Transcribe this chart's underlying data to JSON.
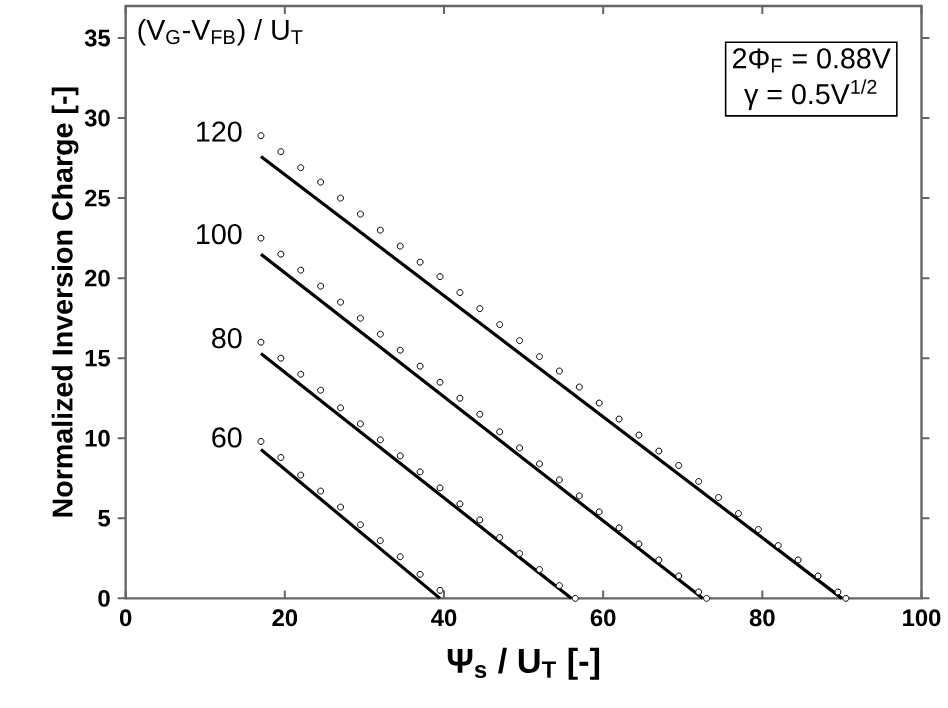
{
  "chart_data": {
    "type": "scatter",
    "xlabel": "Ψ$_{s}$ / U$_{T}$ [-]",
    "ylabel": "Normalized Inversion Charge [-]",
    "legend_title": "(V$_{G}$-V$_{FB}$) / U$_{T}$",
    "annotations": [
      "2Φ$_{F}$ = 0.88V",
      "γ = 0.5V$^{1/2}$"
    ],
    "xlim": [
      0,
      100
    ],
    "ylim": [
      0,
      37
    ],
    "xticks": [
      0,
      20,
      40,
      60,
      80,
      100
    ],
    "yticks": [
      0,
      5,
      10,
      15,
      20,
      25,
      30,
      35
    ],
    "grid": false,
    "series": [
      {
        "name": "120",
        "marker": "circle",
        "color": "#000000",
        "x": [
          17,
          19.5,
          22,
          24.5,
          27,
          29.5,
          32,
          34.5,
          37,
          39.5,
          42,
          44.5,
          47,
          49.5,
          52,
          54.5,
          57,
          59.5,
          62,
          64.5,
          67,
          69.5,
          72,
          74.5,
          77,
          79.5,
          82,
          84.5,
          87,
          89.5,
          90.5
        ],
        "values": [
          28.9,
          27.9,
          26.9,
          26.0,
          25.0,
          24.0,
          23.0,
          22.0,
          21.0,
          20.1,
          19.1,
          18.1,
          17.1,
          16.1,
          15.1,
          14.2,
          13.2,
          12.2,
          11.2,
          10.2,
          9.2,
          8.3,
          7.3,
          6.3,
          5.3,
          4.3,
          3.3,
          2.4,
          1.4,
          0.4,
          0
        ]
      },
      {
        "type": "line",
        "marker": "none",
        "color": "#000000",
        "x": [
          17,
          90
        ],
        "values": [
          27.6,
          0
        ]
      },
      {
        "name": "100",
        "marker": "circle",
        "color": "#000000",
        "x": [
          17,
          19.5,
          22,
          24.5,
          27,
          29.5,
          32,
          34.5,
          37,
          39.5,
          42,
          44.5,
          47,
          49.5,
          52,
          54.5,
          57,
          59.5,
          62,
          64.5,
          67,
          69.5,
          72,
          73
        ],
        "values": [
          22.5,
          21.5,
          20.5,
          19.5,
          18.5,
          17.5,
          16.5,
          15.5,
          14.5,
          13.5,
          12.5,
          11.5,
          10.4,
          9.4,
          8.4,
          7.4,
          6.4,
          5.4,
          4.4,
          3.4,
          2.4,
          1.4,
          0.4,
          0
        ]
      },
      {
        "type": "line",
        "marker": "none",
        "color": "#000000",
        "x": [
          17,
          72.5
        ],
        "values": [
          21.5,
          0
        ]
      },
      {
        "name": "80",
        "marker": "circle",
        "color": "#000000",
        "x": [
          17,
          19.5,
          22,
          24.5,
          27,
          29.5,
          32,
          34.5,
          37,
          39.5,
          42,
          44.5,
          47,
          49.5,
          52,
          54.5,
          56.5
        ],
        "values": [
          16.0,
          15.0,
          14.0,
          13.0,
          11.9,
          10.9,
          9.9,
          8.9,
          7.9,
          6.9,
          5.9,
          4.9,
          3.8,
          2.8,
          1.8,
          0.8,
          0
        ]
      },
      {
        "type": "line",
        "marker": "none",
        "color": "#000000",
        "x": [
          17,
          56
        ],
        "values": [
          15.3,
          0
        ]
      },
      {
        "name": "60",
        "marker": "circle",
        "color": "#000000",
        "x": [
          17,
          19.5,
          22,
          24.5,
          27,
          29.5,
          32,
          34.5,
          37,
          39.5
        ],
        "values": [
          9.8,
          8.8,
          7.7,
          6.7,
          5.7,
          4.6,
          3.6,
          2.6,
          1.5,
          0.5
        ]
      },
      {
        "type": "line",
        "marker": "none",
        "color": "#000000",
        "x": [
          17,
          39.5
        ],
        "values": [
          9.3,
          0
        ]
      }
    ]
  }
}
